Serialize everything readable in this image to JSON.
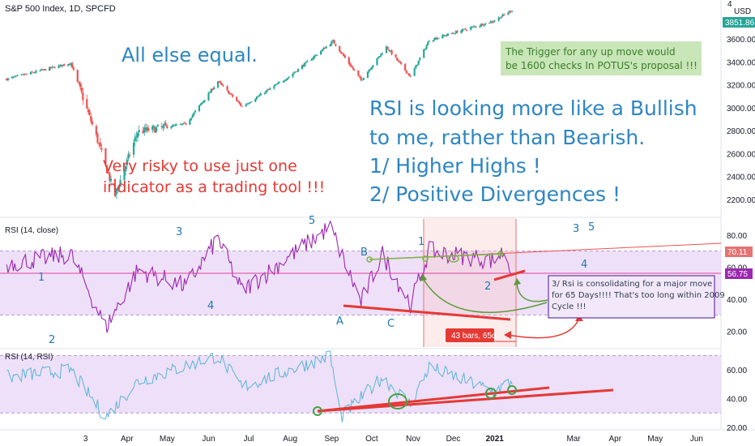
{
  "header": {
    "symbol_title": "S&P 500 Index, 1D, SPCFD",
    "price_axis_top_digit": "4",
    "currency": "USD",
    "last_price": "3851.86"
  },
  "annotations": {
    "all_else_equal": "All else equal.",
    "trigger_line1": "The Trigger for any up move would",
    "trigger_line2": "be 1600 checks In POTUS's proposal !!!",
    "rsi_bullish_line1": "RSI is looking more like a Bullish",
    "rsi_bullish_line2": "to me, rather than Bearish.",
    "higher_highs": "1/ Higher Highs !",
    "positive_div": "2/ Positive Divergences !",
    "risky_line1": "Very risky to use just one",
    "risky_line2": "indicator as a trading tool !!!",
    "consolidating_line1": "3/ Rsi is consolidating for a major move",
    "consolidating_line2": "for 65 Days!!!! That's too long within 2009",
    "consolidating_line3": "Cycle !!!",
    "bars_badge": "43 bars, 65d",
    "labels": {
      "n1_left": "1",
      "n2_left": "2",
      "n3_top": "3",
      "n4_left": "4",
      "n5_top": "5",
      "A": "A",
      "B": "B",
      "C": "C",
      "n1_mid": "1",
      "n2_mid": "2",
      "n3_right": "3",
      "n4_right": "4",
      "n5_right": "5"
    }
  },
  "colors": {
    "candle_up": "#26a69a",
    "candle_down": "#ef5350",
    "rsi_line": "#9c27b0",
    "rsi_band": "#e8d5f5",
    "rsi2_line": "#5ab4d6",
    "annotation_blue": "#2e86c1",
    "annotation_red": "#e53935",
    "annotation_green": "#5a9a3a",
    "trigger_bg": "#c8e6b8"
  },
  "chart_data": [
    {
      "type": "candlestick",
      "title": "S&P 500 Index, 1D, SPCFD",
      "ylabel": "USD",
      "ylim": [
        2000,
        4000
      ],
      "y_ticks": [
        2200,
        2400,
        2600,
        2800,
        3000,
        3200,
        3400,
        3600
      ],
      "last_value": 3851.86,
      "x_ticks": [
        "3",
        "Apr",
        "May",
        "Jun",
        "Jul",
        "Aug",
        "Sep",
        "Oct",
        "Nov",
        "Dec",
        "2021",
        "Mar",
        "Apr",
        "May",
        "Jun"
      ],
      "series": [
        {
          "key_points": [
            {
              "x": "2020-01-02",
              "close": 3250
            },
            {
              "x": "2020-02-19",
              "close": 3390
            },
            {
              "x": "2020-03-09",
              "close": 2750
            },
            {
              "x": "2020-03-23",
              "close": 2237
            },
            {
              "x": "2020-04-09",
              "close": 2790
            },
            {
              "x": "2020-05-15",
              "close": 2860
            },
            {
              "x": "2020-06-08",
              "close": 3230
            },
            {
              "x": "2020-06-26",
              "close": 3010
            },
            {
              "x": "2020-07-31",
              "close": 3270
            },
            {
              "x": "2020-09-02",
              "close": 3580
            },
            {
              "x": "2020-09-23",
              "close": 3240
            },
            {
              "x": "2020-10-12",
              "close": 3530
            },
            {
              "x": "2020-10-30",
              "close": 3270
            },
            {
              "x": "2020-11-13",
              "close": 3590
            },
            {
              "x": "2020-12-31",
              "close": 3756
            },
            {
              "x": "2021-01-14",
              "close": 3851
            }
          ]
        }
      ]
    },
    {
      "type": "line",
      "title": "RSI (14, close)",
      "ylim": [
        10,
        90
      ],
      "y_ticks": [
        20,
        40,
        60,
        80
      ],
      "band": [
        30,
        70
      ],
      "marker_values": [
        70.11,
        56.75
      ],
      "series": [
        {
          "key_points": [
            {
              "x": "2020-01-02",
              "y": 62
            },
            {
              "x": "2020-02-19",
              "y": 68
            },
            {
              "x": "2020-03-09",
              "y": 35
            },
            {
              "x": "2020-03-16",
              "y": 22
            },
            {
              "x": "2020-04-09",
              "y": 58
            },
            {
              "x": "2020-05-15",
              "y": 48
            },
            {
              "x": "2020-06-08",
              "y": 78
            },
            {
              "x": "2020-06-26",
              "y": 45
            },
            {
              "x": "2020-08-31",
              "y": 85
            },
            {
              "x": "2020-09-23",
              "y": 38
            },
            {
              "x": "2020-10-09",
              "y": 68
            },
            {
              "x": "2020-10-30",
              "y": 37
            },
            {
              "x": "2020-11-13",
              "y": 70
            },
            {
              "x": "2020-12-31",
              "y": 64
            },
            {
              "x": "2021-01-08",
              "y": 70
            },
            {
              "x": "2021-01-14",
              "y": 57
            }
          ]
        }
      ]
    },
    {
      "type": "line",
      "title": "RSI (14, RSI)",
      "ylim": [
        20,
        72
      ],
      "y_ticks": [
        20,
        40,
        60
      ],
      "band": [
        30,
        70
      ],
      "series": [
        {
          "key_points": [
            {
              "x": "2020-01-02",
              "y": 55
            },
            {
              "x": "2020-02-19",
              "y": 60
            },
            {
              "x": "2020-03-16",
              "y": 27
            },
            {
              "x": "2020-04-09",
              "y": 52
            },
            {
              "x": "2020-06-08",
              "y": 70
            },
            {
              "x": "2020-06-26",
              "y": 48
            },
            {
              "x": "2020-08-31",
              "y": 70
            },
            {
              "x": "2020-09-08",
              "y": 27
            },
            {
              "x": "2020-10-09",
              "y": 55
            },
            {
              "x": "2020-10-30",
              "y": 36
            },
            {
              "x": "2020-11-13",
              "y": 62
            },
            {
              "x": "2020-12-31",
              "y": 45
            },
            {
              "x": "2021-01-14",
              "y": 52
            }
          ]
        }
      ]
    }
  ]
}
